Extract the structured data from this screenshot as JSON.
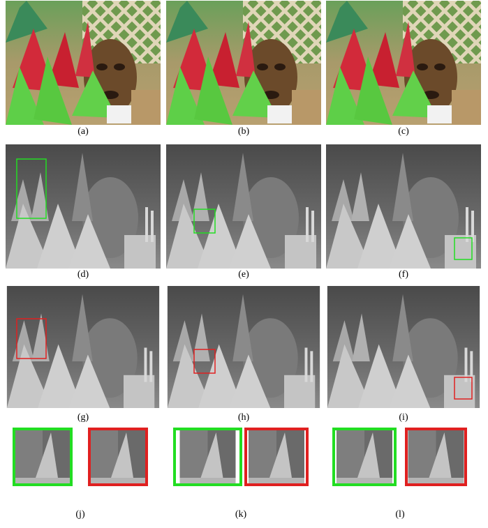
{
  "labels": [
    "(a)",
    "(b)",
    "(c)",
    "(d)",
    "(e)",
    "(f)",
    "(g)",
    "(h)",
    "(i)",
    "(j)",
    "(k)",
    "(l)"
  ]
}
